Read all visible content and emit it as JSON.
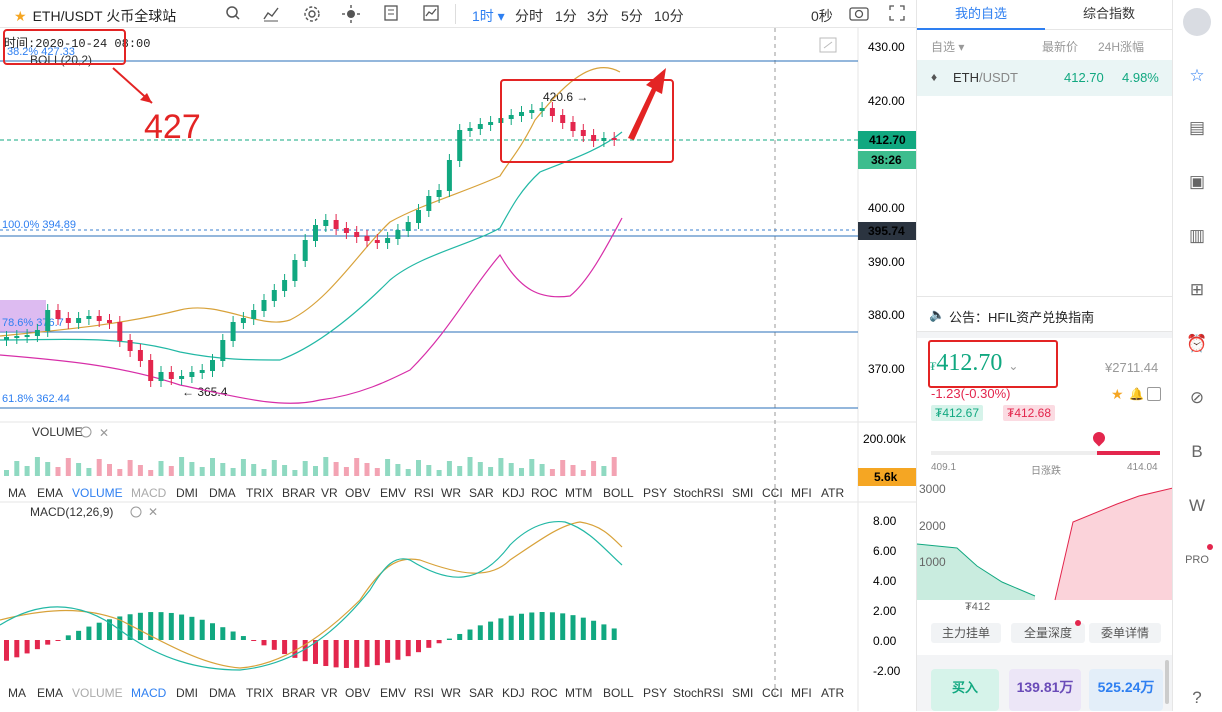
{
  "header": {
    "symbol": "ETH/USDT",
    "exchange": "火币全球站",
    "intervals": [
      "1时",
      "分时",
      "1分",
      "3分",
      "5分",
      "10分"
    ],
    "active_interval_index": 0,
    "countdown": "0秒"
  },
  "chart": {
    "time_label": "时间:2020-10-24 08:00",
    "fib_382": "38.2% 427.33",
    "fib_1000": "100.0% 394.89",
    "fib_786": "78.6% 376.7",
    "fib_618": "61.8% 362.44",
    "boll_label": "BOLL(20,2)",
    "annotation_427": "427",
    "high_label": "420.6 →",
    "low_label": "← 365.4",
    "price_axis": [
      "430.00",
      "420.00",
      "410.00",
      "400.00",
      "390.00",
      "380.00",
      "370.00"
    ],
    "last_price_tag": "412.70",
    "countdown_tag": "38:26",
    "fib_price_tag": "395.74",
    "volume_label": "VOLUME",
    "volume_axis": "200.00k",
    "volume_tag": "5.6k",
    "macd_label": "MACD(12,26,9)",
    "macd_axis": [
      "8.00",
      "6.00",
      "4.00",
      "2.00",
      "0.00",
      "-2.00"
    ],
    "indicators": [
      "MA",
      "EMA",
      "VOLUME",
      "MACD",
      "DMI",
      "DMA",
      "TRIX",
      "BRAR",
      "VR",
      "OBV",
      "EMV",
      "RSI",
      "WR",
      "SAR",
      "KDJ",
      "ROC",
      "MTM",
      "BOLL",
      "PSY",
      "StochRSI",
      "SMI",
      "CCI",
      "MFI",
      "ATR"
    ]
  },
  "right": {
    "tabs": [
      "我的自选",
      "综合指数"
    ],
    "watchlist_head": [
      "自选 ▾",
      "最新价",
      "24H涨幅"
    ],
    "watch_item": {
      "symbol": "ETH",
      "quote": "/USDT",
      "price": "412.70",
      "change": "4.98%"
    },
    "notice": "公告：HFIL资产兑换指南",
    "price": "412.70",
    "cny": "¥2711.44",
    "change": "-1.23(-0.30%)",
    "bid": "₮412.67",
    "ask": "₮412.68",
    "range_low": "409.1",
    "range_label": "日涨跌",
    "range_high": "414.04",
    "depth_axis": [
      "3000",
      "2000",
      "1000"
    ],
    "depth_price": "₮412",
    "bottom_tabs": [
      "主力挂单",
      "全量深度",
      "委单详情"
    ],
    "buy_label": "买入",
    "stat1": "139.81万",
    "stat2": "525.24万"
  },
  "colors": {
    "up": "#11a880",
    "down": "#e3264d",
    "accent": "#2e7ff1",
    "annotation": "#e32424"
  }
}
